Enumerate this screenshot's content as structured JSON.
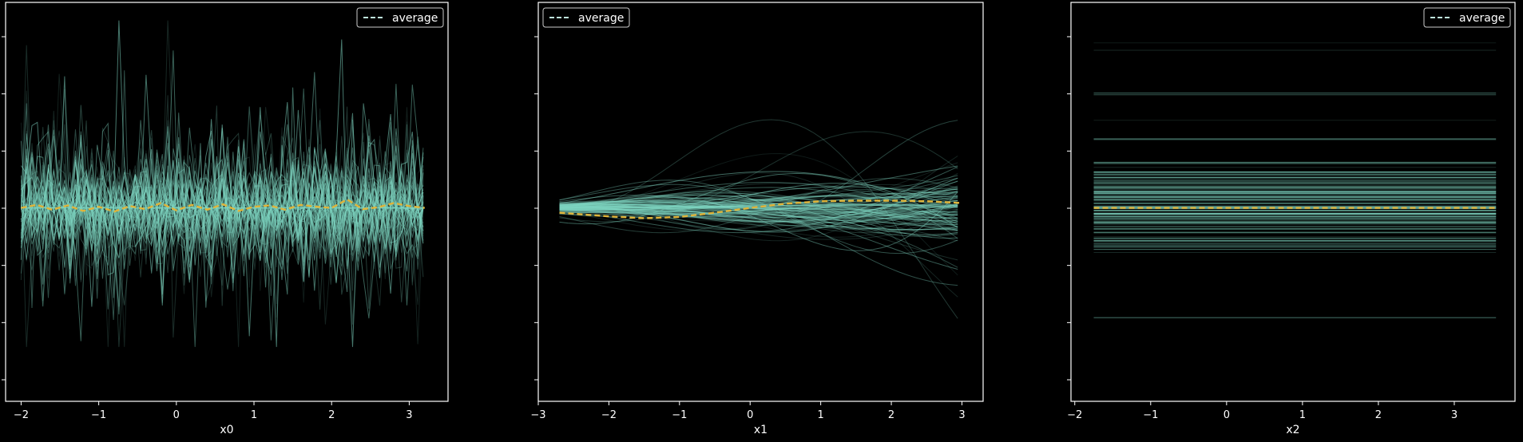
{
  "colors": {
    "background": "#000000",
    "ice_line": "#7fd6c2",
    "average": "#e0b43a",
    "legend_line": "#bfe6dc",
    "frame": "#ffffff"
  },
  "chart_data": [
    {
      "type": "line",
      "title": "",
      "xlabel": "x0",
      "ylabel": "",
      "xlim": [
        -2.2,
        3.5
      ],
      "xticks": [
        -2,
        -1,
        0,
        1,
        2,
        3
      ],
      "ylim": [
        -3.2,
        3.4
      ],
      "legend": {
        "label": "average",
        "placement": "top-right"
      },
      "average": {
        "name": "average",
        "x": [
          -2.0,
          -1.8,
          -1.6,
          -1.4,
          -1.2,
          -1.0,
          -0.8,
          -0.6,
          -0.4,
          -0.2,
          0.0,
          0.2,
          0.4,
          0.6,
          0.8,
          1.0,
          1.2,
          1.4,
          1.6,
          1.8,
          2.0,
          2.2,
          2.4,
          2.6,
          2.8,
          3.0,
          3.2
        ],
        "y": [
          0.0,
          0.05,
          -0.03,
          0.04,
          -0.05,
          0.02,
          -0.06,
          0.03,
          -0.02,
          0.08,
          -0.04,
          0.05,
          -0.03,
          0.06,
          -0.05,
          0.02,
          0.04,
          -0.03,
          0.05,
          0.02,
          0.0,
          0.14,
          -0.02,
          0.01,
          0.08,
          0.03,
          0.0
        ]
      },
      "ice_curves": {
        "count": 80,
        "style": "noisy",
        "range_y": [
          -2.3,
          3.1
        ]
      }
    },
    {
      "type": "line",
      "title": "",
      "xlabel": "x1",
      "ylabel": "",
      "xlim": [
        -3.0,
        3.3
      ],
      "xticks": [
        -3,
        -2,
        -1,
        0,
        1,
        2,
        3
      ],
      "ylim": [
        -3.2,
        3.4
      ],
      "legend": {
        "label": "average",
        "placement": "top-left"
      },
      "average": {
        "name": "average",
        "x": [
          -2.7,
          -2.0,
          -1.5,
          -1.0,
          -0.5,
          0.0,
          0.5,
          1.0,
          1.5,
          2.0,
          2.5,
          3.0
        ],
        "y": [
          -0.08,
          -0.14,
          -0.17,
          -0.15,
          -0.08,
          0.0,
          0.07,
          0.11,
          0.12,
          0.12,
          0.11,
          0.08
        ]
      },
      "ice_curves": {
        "count": 120,
        "style": "smooth",
        "range_y": [
          -2.5,
          3.2
        ]
      }
    },
    {
      "type": "line",
      "title": "",
      "xlabel": "x2",
      "ylabel": "",
      "xlim": [
        -2.05,
        3.8
      ],
      "xticks": [
        -2,
        -1,
        0,
        1,
        2,
        3
      ],
      "ylim": [
        -3.2,
        3.4
      ],
      "legend": {
        "label": "average",
        "placement": "top-right"
      },
      "average": {
        "name": "average",
        "x": [
          -1.75,
          3.55
        ],
        "y": [
          0.0,
          0.0
        ]
      },
      "ice_curves": {
        "count": 140,
        "style": "flat",
        "range_y": [
          -2.5,
          3.1
        ]
      }
    }
  ]
}
